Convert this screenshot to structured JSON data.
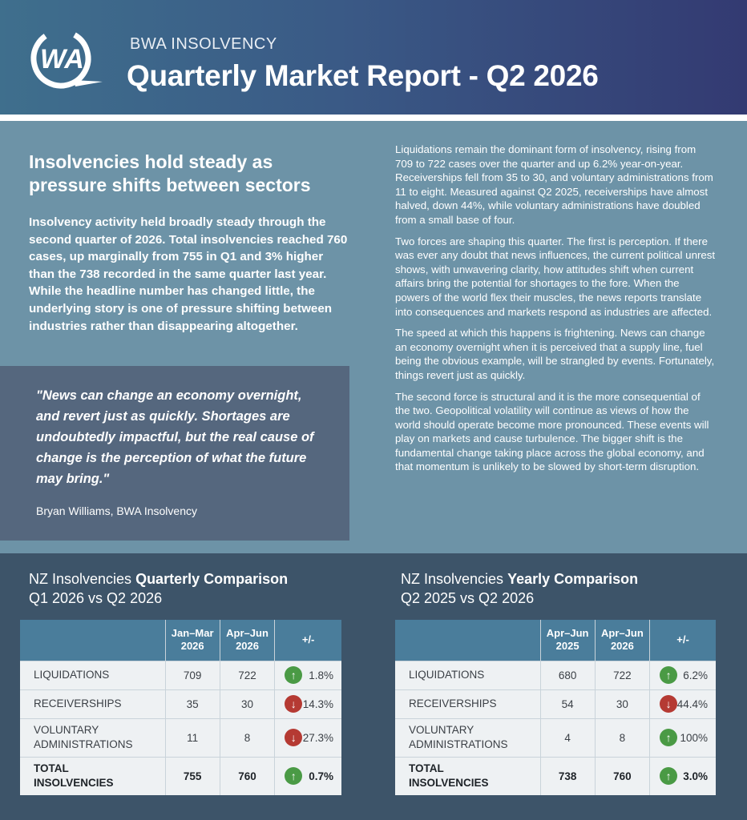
{
  "header": {
    "brand": "BWA INSOLVENCY",
    "title": "Quarterly Market Report - Q2 2026"
  },
  "colors": {
    "header_start": "#3f6f8d",
    "header_end": "#333a72",
    "body_bg": "#6d93a7",
    "quote_bg": "#55677e",
    "bottom_bg": "#3d5469",
    "table_header": "#4a7d9b",
    "up": "#4a9a45",
    "down": "#b53a33"
  },
  "article": {
    "headline": "Insolvencies hold steady as pressure shifts between sectors",
    "intro": "Insolvency activity held broadly steady through the second quarter of 2026. Total insolvencies reached 760 cases, up marginally from 755 in Q1 and 3% higher than the 738 recorded in the same quarter last year. While the headline number has changed little, the underlying story is one of pressure shifting between industries rather than disappearing altogether.",
    "quote": "\"News can change an economy overnight, and revert just as quickly. Shortages are undoubtedly impactful, but the real cause of change is the perception of what the future may bring.\"",
    "quote_author": "Bryan Williams, BWA Insolvency",
    "paragraphs": [
      "Liquidations remain the dominant form of insolvency, rising from 709 to 722 cases over the quarter and up 6.2% year-on-year. Receiverships fell from 35 to 30, and voluntary administrations from 11 to eight. Measured against Q2 2025, receiverships have almost halved, down 44%, while voluntary administrations have doubled from a small base of four.",
      "Two forces are shaping this quarter. The first is perception. If there was ever any doubt that news influences, the current political unrest shows, with unwavering clarity, how attitudes shift when current affairs bring the potential for shortages to the fore. When the powers of the world flex their muscles, the news reports translate into consequences and markets respond as industries are affected.",
      "The speed at which this happens is frightening. News can change an economy overnight when it is perceived that a supply line, fuel being the obvious example, will be strangled by events. Fortunately, things revert just as quickly.",
      "The second force is structural and it is the more consequential of the two. Geopolitical volatility will continue as views of how the world should operate become more pronounced. These events will play on markets and cause turbulence. The bigger shift is the fundamental change taking place across the global economy, and that momentum is unlikely to be slowed by short-term disruption."
    ]
  },
  "quarterly": {
    "title_light": "NZ Insolvencies ",
    "title_bold": "Quarterly Comparison",
    "subtitle": "Q1 2026 vs Q2 2026",
    "col1": "Jan–Mar 2026",
    "col2": "Apr–Jun 2026",
    "col3": "+/-",
    "rows": [
      {
        "label": "LIQUIDATIONS",
        "a": "709",
        "b": "722",
        "change": "1.8%",
        "dir": "up"
      },
      {
        "label": "RECEIVERSHIPS",
        "a": "35",
        "b": "30",
        "change": "14.3%",
        "dir": "down"
      },
      {
        "label": "VOLUNTARY ADMINISTRATIONS",
        "a": "11",
        "b": "8",
        "change": "27.3%",
        "dir": "down"
      },
      {
        "label": "TOTAL INSOLVENCIES",
        "a": "755",
        "b": "760",
        "change": "0.7%",
        "dir": "up"
      }
    ]
  },
  "yearly": {
    "title_light": "NZ Insolvencies ",
    "title_bold": "Yearly Comparison",
    "subtitle": "Q2 2025 vs Q2 2026",
    "col1": "Apr–Jun 2025",
    "col2": "Apr–Jun 2026",
    "col3": "+/-",
    "rows": [
      {
        "label": "LIQUIDATIONS",
        "a": "680",
        "b": "722",
        "change": "6.2%",
        "dir": "up"
      },
      {
        "label": "RECEIVERSHIPS",
        "a": "54",
        "b": "30",
        "change": "44.4%",
        "dir": "down"
      },
      {
        "label": "VOLUNTARY ADMINISTRATIONS",
        "a": "4",
        "b": "8",
        "change": "100%",
        "dir": "up"
      },
      {
        "label": "TOTAL INSOLVENCIES",
        "a": "738",
        "b": "760",
        "change": "3.0%",
        "dir": "up"
      }
    ]
  }
}
